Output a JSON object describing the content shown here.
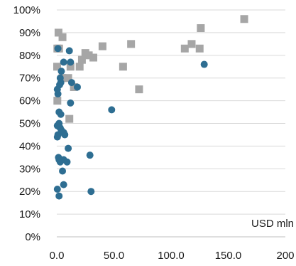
{
  "chart_data": {
    "type": "scatter",
    "title": "",
    "xlabel": "",
    "ylabel": "",
    "x_unit_label": "USD mln",
    "xlim": [
      0,
      200
    ],
    "ylim": [
      0,
      100
    ],
    "x_ticks": [
      "0.0",
      "50.0",
      "100.0",
      "150.0",
      "200"
    ],
    "y_ticks": [
      "0%",
      "10%",
      "20%",
      "30%",
      "40%",
      "50%",
      "60%",
      "70%",
      "80%",
      "90%",
      "100%"
    ],
    "grid": "horizontal",
    "legend": "none",
    "series": [
      {
        "marker": "square",
        "color": "#a6a6a6",
        "points": [
          [
            0.5,
            83
          ],
          [
            1.5,
            90
          ],
          [
            0.3,
            75
          ],
          [
            2,
            83
          ],
          [
            5,
            88
          ],
          [
            0.5,
            60
          ],
          [
            5,
            70
          ],
          [
            10,
            70
          ],
          [
            12,
            75
          ],
          [
            15,
            66
          ],
          [
            20,
            75
          ],
          [
            22,
            78
          ],
          [
            25,
            81
          ],
          [
            28,
            80
          ],
          [
            32,
            79
          ],
          [
            40,
            84
          ],
          [
            58,
            75
          ],
          [
            65,
            85
          ],
          [
            72,
            65
          ],
          [
            112,
            83
          ],
          [
            118,
            85
          ],
          [
            125,
            83
          ],
          [
            126,
            92
          ],
          [
            164,
            96
          ],
          [
            11,
            52
          ]
        ]
      },
      {
        "marker": "circle",
        "color": "#2e6e92",
        "points": [
          [
            1,
            83
          ],
          [
            3,
            70
          ],
          [
            4,
            73
          ],
          [
            3.5,
            68
          ],
          [
            2.5,
            67
          ],
          [
            6,
            77
          ],
          [
            11,
            82
          ],
          [
            12,
            77
          ],
          [
            13,
            68
          ],
          [
            18,
            66
          ],
          [
            12,
            59
          ],
          [
            0.5,
            65
          ],
          [
            1,
            63
          ],
          [
            2,
            55
          ],
          [
            3.5,
            54
          ],
          [
            0.5,
            49
          ],
          [
            2,
            50
          ],
          [
            3,
            48
          ],
          [
            4,
            47
          ],
          [
            6,
            46
          ],
          [
            7,
            45
          ],
          [
            1,
            45
          ],
          [
            0.5,
            44
          ],
          [
            10,
            39
          ],
          [
            1.5,
            35
          ],
          [
            2,
            34
          ],
          [
            3,
            33
          ],
          [
            6,
            34
          ],
          [
            9,
            33
          ],
          [
            5,
            29
          ],
          [
            6,
            23
          ],
          [
            0.5,
            21
          ],
          [
            2,
            18
          ],
          [
            29,
            36
          ],
          [
            30,
            20
          ],
          [
            48,
            56
          ],
          [
            129,
            76
          ]
        ]
      }
    ]
  }
}
